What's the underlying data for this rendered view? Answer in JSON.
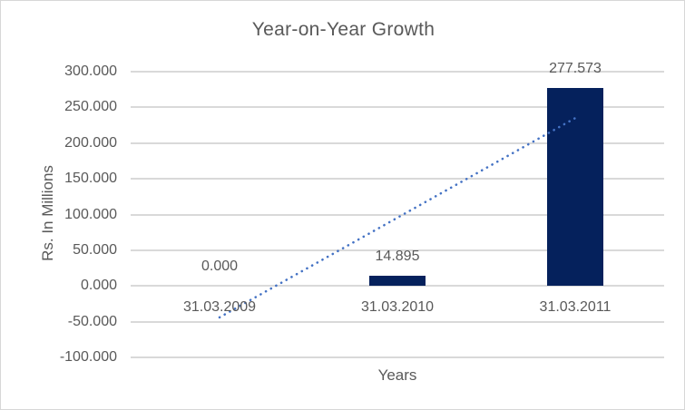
{
  "chart_data": {
    "type": "bar",
    "title": "Year-on-Year Growth",
    "xlabel": "Years",
    "ylabel": "Rs. In Millions",
    "categories": [
      "31.03.2009",
      "31.03.2010",
      "31.03.2011"
    ],
    "values": [
      0,
      14.895,
      277.573
    ],
    "data_labels": [
      "0.000",
      "14.895",
      "277.573"
    ],
    "ylim": [
      -100,
      300
    ],
    "y_ticks": [
      {
        "value": 300,
        "label": "300.000"
      },
      {
        "value": 250,
        "label": "250.000"
      },
      {
        "value": 200,
        "label": "200.000"
      },
      {
        "value": 150,
        "label": "150.000"
      },
      {
        "value": 100,
        "label": "100.000"
      },
      {
        "value": 50,
        "label": "50.000"
      },
      {
        "value": 0,
        "label": "0.000"
      },
      {
        "value": -50,
        "label": "-50.000"
      },
      {
        "value": -100,
        "label": "-100.000"
      }
    ],
    "grid": true,
    "legend": "none",
    "trendline": {
      "type": "linear",
      "style": "dotted",
      "start_value": -44,
      "end_value": 235
    },
    "colors": {
      "bar": "#05215c",
      "trendline": "#4472c4",
      "gridline": "#d9d9d9",
      "text": "#595959",
      "border": "#d7d7d7",
      "background": "#ffffff"
    }
  }
}
